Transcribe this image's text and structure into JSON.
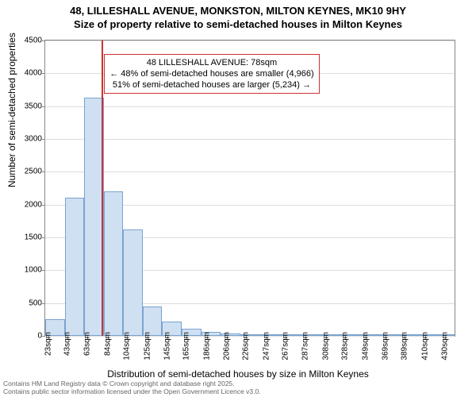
{
  "title_line1": "48, LILLESHALL AVENUE, MONKSTON, MILTON KEYNES, MK10 9HY",
  "title_line2": "Size of property relative to semi-detached houses in Milton Keynes",
  "ylabel": "Number of semi-detached properties",
  "xlabel": "Distribution of semi-detached houses by size in Milton Keynes",
  "chart": {
    "type": "histogram",
    "background_color": "#ffffff",
    "grid_color": "#dddddd",
    "axis_color": "#888888",
    "bar_fill": "#cfe0f2",
    "bar_border": "#7aa3cf",
    "marker_color": "#cc3333",
    "ylim": [
      0,
      4500
    ],
    "ytick_step": 500,
    "yticks": [
      0,
      500,
      1000,
      1500,
      2000,
      2500,
      3000,
      3500,
      4000,
      4500
    ],
    "xlim_sqm": [
      20,
      440
    ],
    "bin_width_sqm": 20,
    "xtick_sqm": [
      23,
      43,
      63,
      84,
      104,
      125,
      145,
      165,
      186,
      206,
      226,
      247,
      267,
      287,
      308,
      328,
      349,
      369,
      389,
      410,
      430
    ],
    "values": [
      250,
      2100,
      3630,
      2200,
      1620,
      450,
      220,
      110,
      60,
      40,
      25,
      10,
      8,
      8,
      5,
      5,
      3,
      3,
      2,
      2,
      1
    ],
    "label_fontsize": 12,
    "tick_fontsize": 10,
    "title_fontsize": 13,
    "bar_relative_width": 1.0
  },
  "marker": {
    "property_sqm": 78,
    "line1": "48 LILLESHALL AVENUE: 78sqm",
    "line2": "← 48% of semi-detached houses are smaller (4,966)",
    "line3": "51% of semi-detached houses are larger (5,234) →"
  },
  "footer": {
    "line1": "Contains HM Land Registry data © Crown copyright and database right 2025.",
    "line2": "Contains public sector information licensed under the Open Government Licence v3.0."
  }
}
